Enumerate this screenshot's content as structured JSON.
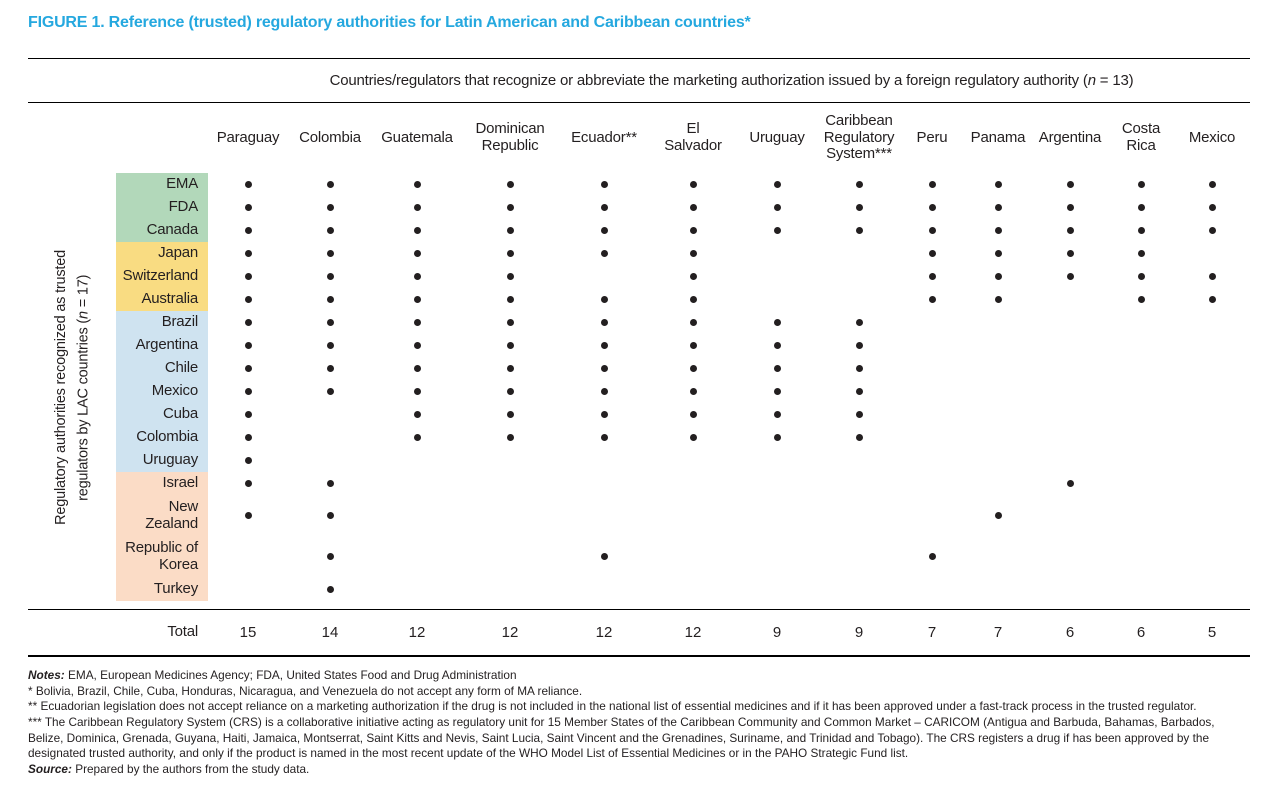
{
  "figure_title": "FIGURE 1. Reference (trusted) regulatory authorities for Latin American and Caribbean countries*",
  "accent_color": "#25a8df",
  "chart_data": {
    "type": "table",
    "caption": {
      "prefix": "Countries/regulators that recognize or abbreviate the marketing authorization issued by a foreign regulatory authority (",
      "n": "n",
      "suffix": " = 13)"
    },
    "columns": [
      "Paraguay",
      "Colombia",
      "Guatemala",
      "Dominican\nRepublic",
      "Ecuador**",
      "El\nSalvador",
      "Uruguay",
      "Caribbean\nRegulatory\nSystem***",
      "Peru",
      "Panama",
      "Argentina",
      "Costa\nRica",
      "Mexico"
    ],
    "row_axis": {
      "line1": "Regulatory authorities recognized as trusted",
      "line2_prefix": "regulators by LAC countries (",
      "n": "n",
      "line2_suffix": " = 17)"
    },
    "row_groups": [
      {
        "color": "#b2d8ba",
        "rows": [
          "EMA",
          "FDA",
          "Canada"
        ]
      },
      {
        "color": "#f9dc82",
        "rows": [
          "Japan",
          "Switzerland",
          "Australia"
        ]
      },
      {
        "color": "#cfe3f0",
        "rows": [
          "Brazil",
          "Argentina",
          "Chile",
          "Mexico",
          "Cuba",
          "Colombia",
          "Uruguay"
        ]
      },
      {
        "color": "#fbdcc6",
        "rows": [
          "Israel",
          "New\nZealand",
          "Republic of\nKorea",
          "Turkey"
        ]
      }
    ],
    "matrix": [
      [
        1,
        1,
        1,
        1,
        1,
        1,
        1,
        1,
        1,
        1,
        1,
        1,
        1
      ],
      [
        1,
        1,
        1,
        1,
        1,
        1,
        1,
        1,
        1,
        1,
        1,
        1,
        1
      ],
      [
        1,
        1,
        1,
        1,
        1,
        1,
        1,
        1,
        1,
        1,
        1,
        1,
        1
      ],
      [
        1,
        1,
        1,
        1,
        1,
        1,
        0,
        0,
        1,
        1,
        1,
        1,
        0
      ],
      [
        1,
        1,
        1,
        1,
        0,
        1,
        0,
        0,
        1,
        1,
        1,
        1,
        1
      ],
      [
        1,
        1,
        1,
        1,
        1,
        1,
        0,
        0,
        1,
        1,
        0,
        1,
        1
      ],
      [
        1,
        1,
        1,
        1,
        1,
        1,
        1,
        1,
        0,
        0,
        0,
        0,
        0
      ],
      [
        1,
        1,
        1,
        1,
        1,
        1,
        1,
        1,
        0,
        0,
        0,
        0,
        0
      ],
      [
        1,
        1,
        1,
        1,
        1,
        1,
        1,
        1,
        0,
        0,
        0,
        0,
        0
      ],
      [
        1,
        1,
        1,
        1,
        1,
        1,
        1,
        1,
        0,
        0,
        0,
        0,
        0
      ],
      [
        1,
        0,
        1,
        1,
        1,
        1,
        1,
        1,
        0,
        0,
        0,
        0,
        0
      ],
      [
        1,
        0,
        1,
        1,
        1,
        1,
        1,
        1,
        0,
        0,
        0,
        0,
        0
      ],
      [
        1,
        0,
        0,
        0,
        0,
        0,
        0,
        0,
        0,
        0,
        0,
        0,
        0
      ],
      [
        1,
        1,
        0,
        0,
        0,
        0,
        0,
        0,
        0,
        0,
        1,
        0,
        0
      ],
      [
        1,
        1,
        0,
        0,
        0,
        0,
        0,
        0,
        0,
        1,
        0,
        0,
        0
      ],
      [
        0,
        1,
        0,
        0,
        1,
        0,
        0,
        0,
        1,
        0,
        0,
        0,
        0
      ],
      [
        0,
        1,
        0,
        0,
        0,
        0,
        0,
        0,
        0,
        0,
        0,
        0,
        0
      ]
    ],
    "total_label": "Total",
    "totals": [
      15,
      14,
      12,
      12,
      12,
      12,
      9,
      9,
      7,
      7,
      6,
      6,
      5
    ],
    "dot_color": "#231f20"
  },
  "notes": {
    "line1_lead": "Notes:",
    "line1_text": " EMA, European Medicines Agency; FDA, United States Food and Drug Administration",
    "line2": "* Bolivia, Brazil, Chile, Cuba, Honduras, Nicaragua, and Venezuela do not accept any form of MA reliance.",
    "line3": "** Ecuadorian legislation does not accept reliance on a marketing authorization if the drug is not included in the national list of essential medicines and if it has been approved under a fast-track process in the trusted regulator.",
    "line4": "*** The Caribbean Regulatory System (CRS) is a collaborative initiative acting as regulatory unit for 15 Member States of the Caribbean Community and Common Market – CARICOM (Antigua and Barbuda, Bahamas, Barbados, Belize, Dominica, Grenada, Guyana, Haiti, Jamaica, Montserrat, Saint Kitts and Nevis, Saint Lucia, Saint Vincent and the Grenadines, Suriname, and Trinidad and Tobago). The CRS registers a drug if has been approved by the designated trusted authority, and only if the product is named in the most recent update of the WHO Model List of Essential Medicines or in the PAHO Strategic Fund list.",
    "line5_lead": "Source:",
    "line5_text": " Prepared by the authors from the study data."
  }
}
